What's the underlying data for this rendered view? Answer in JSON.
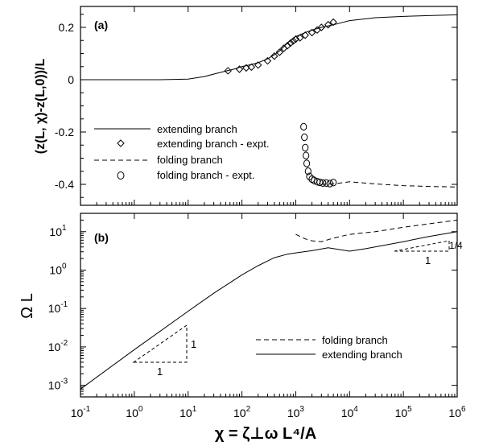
{
  "chart_data": [
    {
      "panel": "(a)",
      "type": "line",
      "ylabel": "(z(L, χ)-z(L,0))/L",
      "xscale": "log",
      "xlim": [
        0.1,
        1000000
      ],
      "ylim": [
        -0.48,
        0.28
      ],
      "yticks": [
        "0.2",
        "0",
        "-0.2",
        "-0.4"
      ],
      "ytick_values": [
        0.2,
        0,
        -0.2,
        -0.4
      ],
      "legend_position": "left",
      "series": [
        {
          "name": "extending branch",
          "style": "solid",
          "x": [
            0.1,
            1,
            3,
            10,
            20,
            40,
            70,
            100,
            150,
            200,
            300,
            400,
            500,
            700,
            1000,
            1500,
            2000,
            3000,
            5000,
            10000,
            30000,
            100000,
            300000,
            1000000
          ],
          "y": [
            0,
            0,
            0,
            0.002,
            0.012,
            0.028,
            0.04,
            0.05,
            0.058,
            0.065,
            0.08,
            0.095,
            0.11,
            0.14,
            0.165,
            0.18,
            0.19,
            0.2,
            0.21,
            0.226,
            0.237,
            0.242,
            0.245,
            0.248
          ]
        },
        {
          "name": "extending branch - expt.",
          "style": "diamond",
          "x": [
            55,
            90,
            120,
            150,
            200,
            300,
            400,
            500,
            600,
            700,
            800,
            900,
            1000,
            1200,
            1500,
            2000,
            2500,
            3000,
            4000,
            5000
          ],
          "y": [
            0.034,
            0.04,
            0.045,
            0.048,
            0.056,
            0.072,
            0.09,
            0.105,
            0.12,
            0.13,
            0.14,
            0.148,
            0.155,
            0.16,
            0.17,
            0.18,
            0.19,
            0.2,
            0.21,
            0.22
          ]
        },
        {
          "name": "folding branch",
          "style": "dashed",
          "x": [
            3000,
            5000,
            10000,
            30000,
            100000,
            300000,
            1000000
          ],
          "y": [
            -0.4,
            -0.398,
            -0.39,
            -0.398,
            -0.405,
            -0.408,
            -0.41
          ]
        },
        {
          "name": "folding branch - expt.",
          "style": "circle",
          "x": [
            1400,
            1450,
            1500,
            1550,
            1600,
            1700,
            1800,
            2000,
            2200,
            2500,
            2800,
            3200,
            3700,
            4300,
            5000
          ],
          "y": [
            -0.18,
            -0.22,
            -0.26,
            -0.29,
            -0.32,
            -0.35,
            -0.37,
            -0.38,
            -0.385,
            -0.39,
            -0.392,
            -0.395,
            -0.395,
            -0.397,
            -0.393
          ]
        }
      ]
    },
    {
      "panel": "(b)",
      "type": "line",
      "xlabel": "χ = ζ⊥ω L⁴/A",
      "ylabel": "Ω L",
      "xscale": "log",
      "yscale": "log",
      "xlim": [
        0.1,
        1000000
      ],
      "ylim": [
        0.0005,
        30
      ],
      "xticks": [
        "10-1",
        "100",
        "101",
        "102",
        "103",
        "104",
        "105",
        "106"
      ],
      "yticks": [
        "101",
        "100",
        "10-1",
        "10-2",
        "10-3"
      ],
      "legend_position": "lower-right",
      "series": [
        {
          "name": "folding branch",
          "style": "dashed",
          "x": [
            1000,
            1500,
            2000,
            3000,
            5000,
            10000,
            30000,
            100000,
            300000,
            1000000
          ],
          "y": [
            8.5,
            6.5,
            5.8,
            5.5,
            6.8,
            8.5,
            10,
            13,
            16,
            20
          ]
        },
        {
          "name": "extending branch",
          "style": "solid",
          "x": [
            0.1,
            1,
            10,
            30,
            100,
            200,
            400,
            700,
            1000,
            2000,
            4000,
            10000,
            20000,
            100000,
            300000,
            1000000
          ],
          "y": [
            0.0008,
            0.0085,
            0.085,
            0.25,
            0.75,
            1.3,
            2.1,
            2.6,
            2.8,
            3.2,
            3.8,
            3.1,
            3.6,
            5.5,
            7.5,
            10
          ]
        }
      ],
      "annotations": [
        {
          "text": "1",
          "role": "slope-triangle-1-vertical"
        },
        {
          "text": "1",
          "role": "slope-triangle-1-horizontal"
        },
        {
          "text": "1/4",
          "role": "slope-triangle-2-vertical"
        },
        {
          "text": "1",
          "role": "slope-triangle-2-horizontal"
        }
      ]
    }
  ],
  "colors": {
    "line": "#000000",
    "background": "#ffffff"
  }
}
